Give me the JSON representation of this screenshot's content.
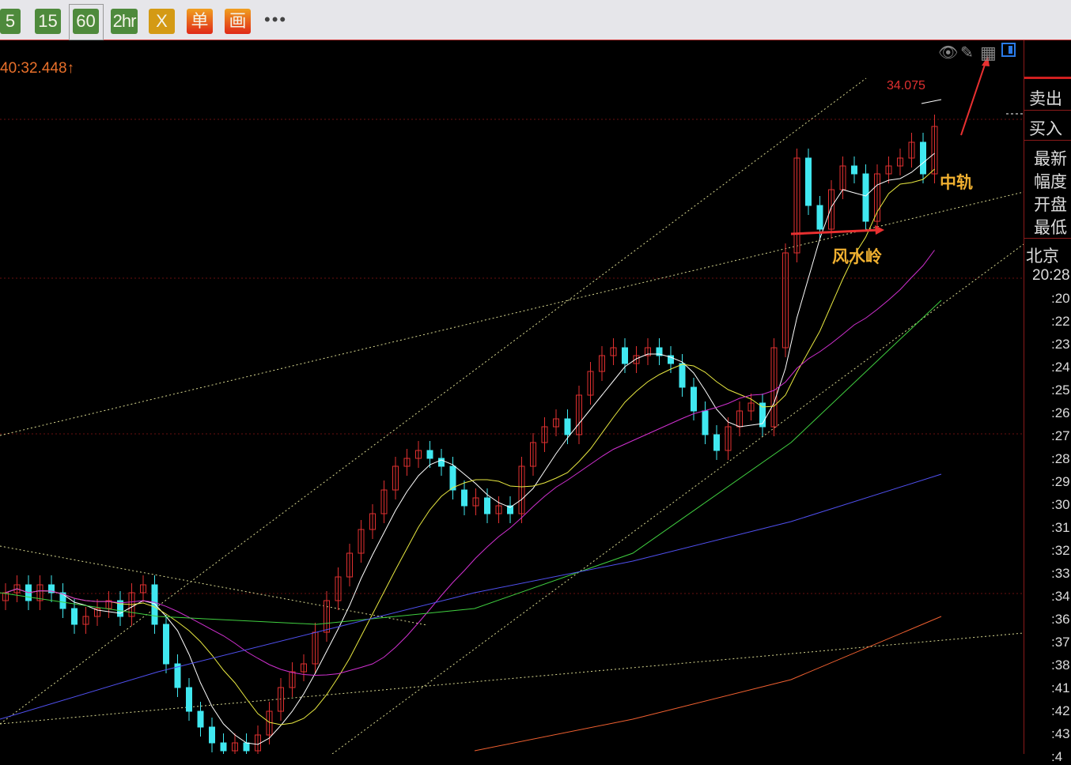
{
  "toolbar": {
    "buttons": [
      {
        "label": "5",
        "color": "green"
      },
      {
        "label": "15",
        "color": "green"
      },
      {
        "label": "60",
        "color": "green",
        "selected": true
      },
      {
        "label": "2hr",
        "color": "green"
      },
      {
        "label": "X",
        "color": "yellow"
      },
      {
        "label": "单",
        "color": "red"
      },
      {
        "label": "画",
        "color": "red"
      }
    ],
    "more": "•••"
  },
  "clock": "40:32.448↑",
  "chart_icons": [
    "eye-slash-icon",
    "pencil-icon",
    "grid-icon",
    "panel-toggle-icon"
  ],
  "panel": {
    "labels": [
      "卖出",
      "买入",
      "最新",
      "幅度",
      "开盘",
      "最低"
    ],
    "city": "北京",
    "time": "20:28",
    "ticks": [
      ":20",
      ":22",
      ":23",
      ":24",
      ":25",
      ":26",
      ":27",
      ":28",
      ":29",
      ":30",
      ":31",
      ":32",
      ":33",
      ":34",
      ":36",
      ":37",
      ":38",
      ":41",
      ":42",
      ":43",
      ":4"
    ]
  },
  "annotations": {
    "high_label": "34.075",
    "mid_rail": "中轨",
    "fengshui": "风水岭"
  },
  "colors": {
    "up": "#e03030",
    "down": "#40e8f0",
    "ma_white": "#ffffff",
    "ma_yellow": "#e8e840",
    "ma_magenta": "#d030d0",
    "ma_green": "#40d040",
    "ma_blue": "#5050f0",
    "ma_orange": "#f06030"
  },
  "chart_data": {
    "type": "candlestick",
    "timeframe": "60",
    "close": [
      31.05,
      31.1,
      31.0,
      31.1,
      31.05,
      30.95,
      30.85,
      30.9,
      30.95,
      31.0,
      30.9,
      31.05,
      31.1,
      30.85,
      30.6,
      30.45,
      30.3,
      30.2,
      30.1,
      30.05,
      30.1,
      30.05,
      30.15,
      30.3,
      30.45,
      30.55,
      30.6,
      30.8,
      31.0,
      31.15,
      31.3,
      31.45,
      31.55,
      31.7,
      31.85,
      31.9,
      31.95,
      31.9,
      31.85,
      31.7,
      31.6,
      31.65,
      31.55,
      31.6,
      31.55,
      31.85,
      32.0,
      32.1,
      32.15,
      32.05,
      32.3,
      32.45,
      32.55,
      32.6,
      32.5,
      32.55,
      32.6,
      32.55,
      32.5,
      32.35,
      32.2,
      32.05,
      31.95,
      32.1,
      32.2,
      32.25,
      32.1,
      32.6,
      33.2,
      33.8,
      33.5,
      33.35,
      33.6,
      33.75,
      33.7,
      33.4,
      33.7,
      33.75,
      33.8,
      33.9,
      33.7,
      34.0
    ],
    "high": 34.075,
    "long_ma": {
      "green": [
        31.05,
        30.9,
        30.85,
        30.95,
        31.3,
        32.0,
        32.9
      ],
      "blue": [
        30.25,
        30.55,
        30.8,
        31.05,
        31.25,
        31.5,
        31.8
      ],
      "orange": [
        null,
        null,
        null,
        30.05,
        30.25,
        30.5,
        30.9
      ]
    }
  }
}
